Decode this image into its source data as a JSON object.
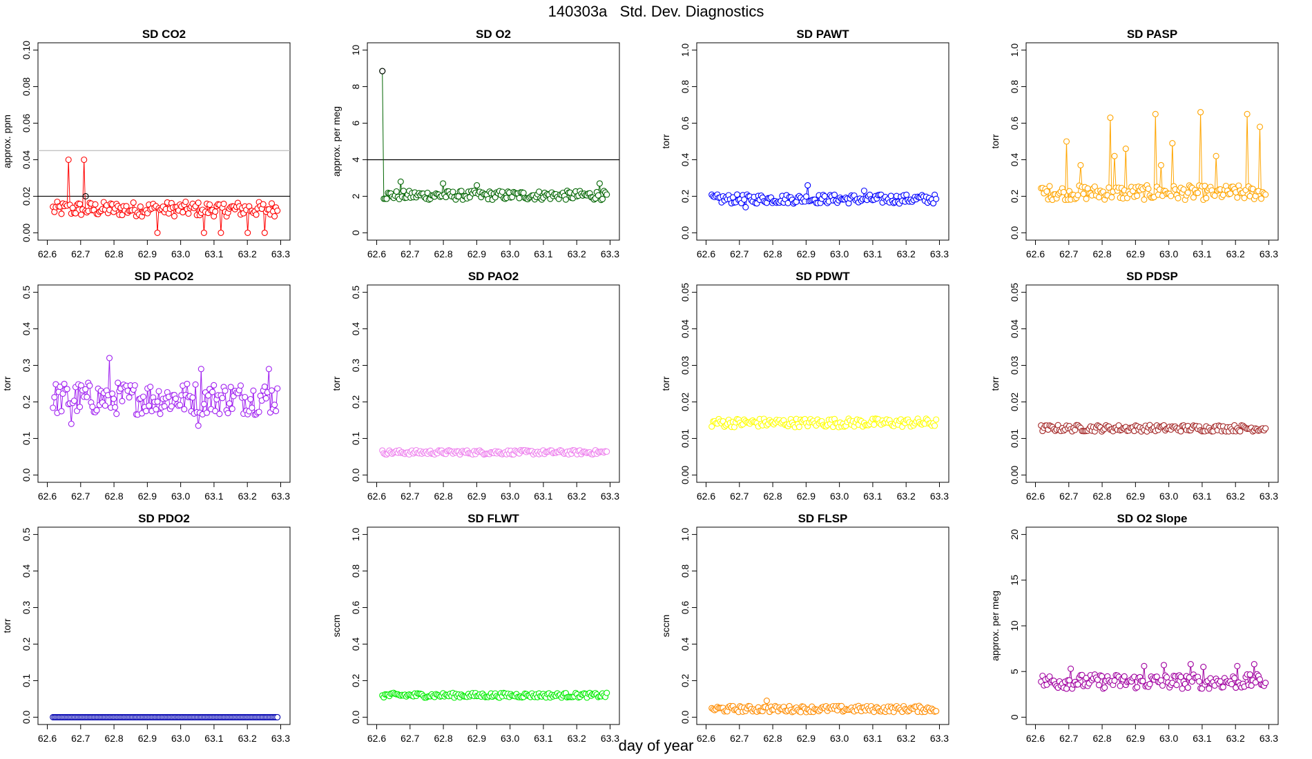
{
  "figure": {
    "title": "140303a   Std. Dev. Diagnostics",
    "xlabel": "day of year"
  },
  "chart_data": [
    {
      "type": "scatter",
      "title": "SD CO2",
      "ylabel": "approx. ppm",
      "color": "#ff0000",
      "ylim": [
        0,
        0.1
      ],
      "yticks": [
        "0.00",
        "0.02",
        "0.04",
        "0.06",
        "0.08",
        "0.10"
      ],
      "ytick_values": [
        0,
        0.02,
        0.04,
        0.06,
        0.08,
        0.1
      ],
      "xlim": [
        62.6,
        63.3
      ],
      "xticks": [
        "62.6",
        "62.7",
        "62.8",
        "62.9",
        "63.0",
        "63.1",
        "63.2",
        "63.3"
      ],
      "hlines": [
        {
          "y": 0.02,
          "color": "#000000"
        },
        {
          "y": 0.045,
          "color": "#bdbdbd"
        }
      ],
      "base": 0.013,
      "amp": 0.004,
      "spikes": [
        [
          62.665,
          0.04
        ],
        [
          62.71,
          0.04
        ],
        [
          62.93,
          0.0
        ],
        [
          63.07,
          0.0
        ],
        [
          63.12,
          0.0
        ],
        [
          63.2,
          0.0
        ],
        [
          63.25,
          0.0
        ]
      ],
      "extra_points": [
        {
          "x": 62.715,
          "y": 0.02,
          "color": "#000000"
        }
      ]
    },
    {
      "type": "scatter",
      "title": "SD O2",
      "ylabel": "approx. per meg",
      "color": "#006400",
      "ylim": [
        0,
        10
      ],
      "yticks": [
        "0",
        "2",
        "4",
        "6",
        "8",
        "10"
      ],
      "ytick_values": [
        0,
        2,
        4,
        6,
        8,
        10
      ],
      "xlim": [
        62.6,
        63.3
      ],
      "xticks": [
        "62.6",
        "62.7",
        "62.8",
        "62.9",
        "63.0",
        "63.1",
        "63.2",
        "63.3"
      ],
      "hlines": [
        {
          "y": 4,
          "color": "#000000"
        }
      ],
      "base": 2.05,
      "amp": 0.25,
      "spikes": [
        [
          62.67,
          2.8
        ],
        [
          62.8,
          2.7
        ],
        [
          62.9,
          2.6
        ],
        [
          63.27,
          2.7
        ]
      ],
      "extra_points": [
        {
          "x": 62.617,
          "y": 8.85,
          "color": "#000000"
        }
      ]
    },
    {
      "type": "scatter",
      "title": "SD PAWT",
      "ylabel": "torr",
      "color": "#0000ff",
      "ylim": [
        0,
        1
      ],
      "yticks": [
        "0.0",
        "0.2",
        "0.4",
        "0.6",
        "0.8",
        "1.0"
      ],
      "ytick_values": [
        0,
        0.2,
        0.4,
        0.6,
        0.8,
        1.0
      ],
      "xlim": [
        62.6,
        63.3
      ],
      "xticks": [
        "62.6",
        "62.7",
        "62.8",
        "62.9",
        "63.0",
        "63.1",
        "63.2",
        "63.3"
      ],
      "hlines": [],
      "base": 0.185,
      "amp": 0.025,
      "spikes": [
        [
          62.905,
          0.26
        ],
        [
          63.075,
          0.23
        ],
        [
          62.72,
          0.14
        ]
      ],
      "extra_points": []
    },
    {
      "type": "scatter",
      "title": "SD PASP",
      "ylabel": "torr",
      "color": "#ffa500",
      "ylim": [
        0,
        1
      ],
      "yticks": [
        "0.0",
        "0.2",
        "0.4",
        "0.6",
        "0.8",
        "1.0"
      ],
      "ytick_values": [
        0,
        0.2,
        0.4,
        0.6,
        0.8,
        1.0
      ],
      "xlim": [
        62.6,
        63.3
      ],
      "xticks": [
        "62.6",
        "62.7",
        "62.8",
        "62.9",
        "63.0",
        "63.1",
        "63.2",
        "63.3"
      ],
      "hlines": [],
      "base": 0.22,
      "amp": 0.04,
      "spikes": [
        [
          62.695,
          0.5
        ],
        [
          62.735,
          0.37
        ],
        [
          62.825,
          0.63
        ],
        [
          62.835,
          0.42
        ],
        [
          62.87,
          0.46
        ],
        [
          62.96,
          0.65
        ],
        [
          62.975,
          0.37
        ],
        [
          63.01,
          0.49
        ],
        [
          63.095,
          0.66
        ],
        [
          63.14,
          0.42
        ],
        [
          63.235,
          0.65
        ],
        [
          63.275,
          0.58
        ]
      ],
      "extra_points": []
    },
    {
      "type": "scatter",
      "title": "SD PACO2",
      "ylabel": "torr",
      "color": "#a020f0",
      "ylim": [
        0,
        0.5
      ],
      "yticks": [
        "0.0",
        "0.1",
        "0.2",
        "0.3",
        "0.4",
        "0.5"
      ],
      "ytick_values": [
        0,
        0.1,
        0.2,
        0.3,
        0.4,
        0.5
      ],
      "xlim": [
        62.6,
        63.3
      ],
      "xticks": [
        "62.6",
        "62.7",
        "62.8",
        "62.9",
        "63.0",
        "63.1",
        "63.2",
        "63.3"
      ],
      "hlines": [],
      "base": 0.21,
      "amp": 0.045,
      "spikes": [
        [
          62.785,
          0.32
        ],
        [
          62.67,
          0.14
        ],
        [
          63.06,
          0.29
        ],
        [
          63.055,
          0.135
        ],
        [
          63.265,
          0.29
        ]
      ],
      "extra_points": []
    },
    {
      "type": "scatter",
      "title": "SD PAO2",
      "ylabel": "torr",
      "color": "#ee82ee",
      "ylim": [
        0,
        0.5
      ],
      "yticks": [
        "0.0",
        "0.1",
        "0.2",
        "0.3",
        "0.4",
        "0.5"
      ],
      "ytick_values": [
        0,
        0.1,
        0.2,
        0.3,
        0.4,
        0.5
      ],
      "xlim": [
        62.6,
        63.3
      ],
      "xticks": [
        "62.6",
        "62.7",
        "62.8",
        "62.9",
        "63.0",
        "63.1",
        "63.2",
        "63.3"
      ],
      "hlines": [],
      "base": 0.062,
      "amp": 0.006,
      "spikes": [],
      "extra_points": []
    },
    {
      "type": "scatter",
      "title": "SD PDWT",
      "ylabel": "torr",
      "color": "#ffff00",
      "ylim": [
        0,
        0.05
      ],
      "yticks": [
        "0.00",
        "0.01",
        "0.02",
        "0.03",
        "0.04",
        "0.05"
      ],
      "ytick_values": [
        0,
        0.01,
        0.02,
        0.03,
        0.04,
        0.05
      ],
      "xlim": [
        62.6,
        63.3
      ],
      "xticks": [
        "62.6",
        "62.7",
        "62.8",
        "62.9",
        "63.0",
        "63.1",
        "63.2",
        "63.3"
      ],
      "hlines": [],
      "base": 0.0143,
      "amp": 0.0012,
      "spikes": [],
      "extra_points": []
    },
    {
      "type": "scatter",
      "title": "SD PDSP",
      "ylabel": "torr",
      "color": "#a52a2a",
      "ylim": [
        0,
        0.05
      ],
      "yticks": [
        "0.00",
        "0.01",
        "0.02",
        "0.03",
        "0.04",
        "0.05"
      ],
      "ytick_values": [
        0,
        0.01,
        0.02,
        0.03,
        0.04,
        0.05
      ],
      "xlim": [
        62.6,
        63.3
      ],
      "xticks": [
        "62.6",
        "62.7",
        "62.8",
        "62.9",
        "63.0",
        "63.1",
        "63.2",
        "63.3"
      ],
      "hlines": [],
      "base": 0.0128,
      "amp": 0.0009,
      "spikes": [],
      "extra_points": []
    },
    {
      "type": "scatter",
      "title": "SD PDO2",
      "ylabel": "torr",
      "color": "#0000b0",
      "ylim": [
        0,
        0.5
      ],
      "yticks": [
        "0.0",
        "0.1",
        "0.2",
        "0.3",
        "0.4",
        "0.5"
      ],
      "ytick_values": [
        0,
        0.1,
        0.2,
        0.3,
        0.4,
        0.5
      ],
      "xlim": [
        62.6,
        63.3
      ],
      "xticks": [
        "62.6",
        "62.7",
        "62.8",
        "62.9",
        "63.0",
        "63.1",
        "63.2",
        "63.3"
      ],
      "hlines": [],
      "base": 0.0,
      "amp": 0.0,
      "spikes": [],
      "extra_points": []
    },
    {
      "type": "scatter",
      "title": "SD FLWT",
      "ylabel": "sccm",
      "color": "#00ee00",
      "ylim": [
        0,
        1
      ],
      "yticks": [
        "0.0",
        "0.2",
        "0.4",
        "0.6",
        "0.8",
        "1.0"
      ],
      "ytick_values": [
        0,
        0.2,
        0.4,
        0.6,
        0.8,
        1.0
      ],
      "xlim": [
        62.6,
        63.3
      ],
      "xticks": [
        "62.6",
        "62.7",
        "62.8",
        "62.9",
        "63.0",
        "63.1",
        "63.2",
        "63.3"
      ],
      "hlines": [],
      "base": 0.12,
      "amp": 0.013,
      "spikes": [],
      "extra_points": []
    },
    {
      "type": "scatter",
      "title": "SD FLSP",
      "ylabel": "sccm",
      "color": "#ff8c00",
      "ylim": [
        0,
        1
      ],
      "yticks": [
        "0.0",
        "0.2",
        "0.4",
        "0.6",
        "0.8",
        "1.0"
      ],
      "ytick_values": [
        0,
        0.2,
        0.4,
        0.6,
        0.8,
        1.0
      ],
      "xlim": [
        62.6,
        63.3
      ],
      "xticks": [
        "62.6",
        "62.7",
        "62.8",
        "62.9",
        "63.0",
        "63.1",
        "63.2",
        "63.3"
      ],
      "hlines": [],
      "base": 0.045,
      "amp": 0.017,
      "spikes": [
        [
          62.78,
          0.09
        ]
      ],
      "extra_points": []
    },
    {
      "type": "scatter",
      "title": "SD O2 Slope",
      "ylabel": "approx. per meg",
      "color": "#a000a0",
      "ylim": [
        0,
        20
      ],
      "yticks": [
        "0",
        "5",
        "10",
        "15",
        "20"
      ],
      "ytick_values": [
        0,
        5,
        10,
        15,
        20
      ],
      "xlim": [
        62.6,
        63.3
      ],
      "xticks": [
        "62.6",
        "62.7",
        "62.8",
        "62.9",
        "63.0",
        "63.1",
        "63.2",
        "63.3"
      ],
      "hlines": [],
      "base": 3.9,
      "amp": 0.8,
      "spikes": [
        [
          62.705,
          5.3
        ],
        [
          62.925,
          5.6
        ],
        [
          62.985,
          5.7
        ],
        [
          63.065,
          5.8
        ],
        [
          63.105,
          5.5
        ],
        [
          63.205,
          5.6
        ],
        [
          63.255,
          5.8
        ]
      ],
      "extra_points": []
    }
  ]
}
